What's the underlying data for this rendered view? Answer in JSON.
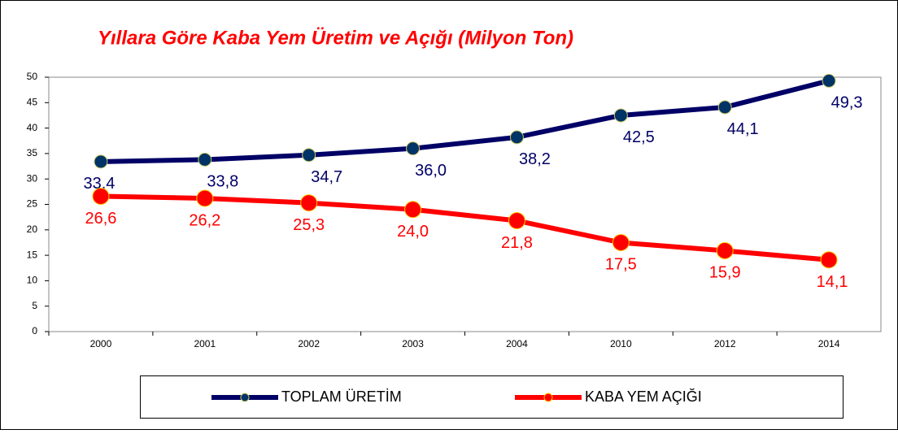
{
  "chart_data": {
    "type": "line",
    "title": "Yıllara Göre Kaba Yem Üretim ve Açığı (Milyon Ton)",
    "categories": [
      "2000",
      "2001",
      "2002",
      "2003",
      "2004",
      "2010",
      "2012",
      "2014"
    ],
    "series": [
      {
        "name": "TOPLAM ÜRETİM",
        "color": "#000066",
        "values": [
          33.4,
          33.8,
          34.7,
          36.0,
          38.2,
          42.5,
          44.1,
          49.3
        ],
        "value_labels": [
          "33,4",
          "33,8",
          "34,7",
          "36,0",
          "38,2",
          "42,5",
          "44,1",
          "49,3"
        ]
      },
      {
        "name": "KABA YEM AÇIĞI",
        "color": "#ff0000",
        "values": [
          26.6,
          26.2,
          25.3,
          24.0,
          21.8,
          17.5,
          15.9,
          14.1
        ],
        "value_labels": [
          "26,6",
          "26,2",
          "25,3",
          "24,0",
          "21,8",
          "17,5",
          "15,9",
          "14,1"
        ]
      }
    ],
    "ylim": [
      0,
      50
    ],
    "yticks": [
      0,
      5,
      10,
      15,
      20,
      25,
      30,
      35,
      40,
      45,
      50
    ],
    "grid": false,
    "legend": "bottom"
  }
}
